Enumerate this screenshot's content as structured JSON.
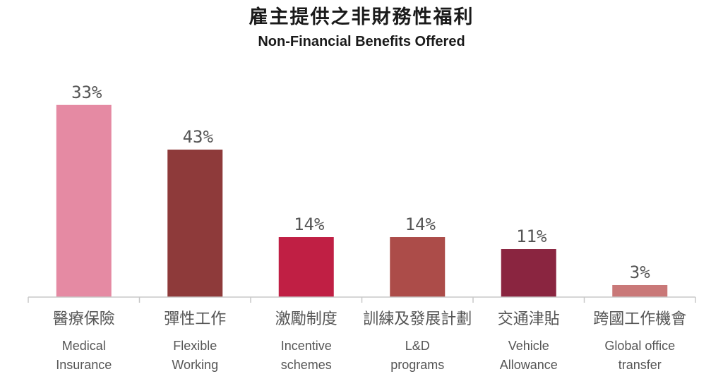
{
  "title": "雇主提供之非財務性福利",
  "subtitle": "Non-Financial Benefits Offered",
  "chart_data": {
    "type": "bar",
    "title": "雇主提供之非財務性福利",
    "subtitle": "Non-Financial Benefits Offered",
    "categories": [
      {
        "zh": "醫療保險",
        "en": [
          "Medical",
          "Insurance"
        ]
      },
      {
        "zh": "彈性工作",
        "en": [
          "Flexible",
          "Working"
        ]
      },
      {
        "zh": "激勵制度",
        "en": [
          "Incentive",
          "schemes"
        ]
      },
      {
        "zh": "訓練及發展計劃",
        "en": [
          "L&D",
          "programs"
        ]
      },
      {
        "zh": "交通津貼",
        "en": [
          "Vehicle",
          "Allowance"
        ]
      },
      {
        "zh": "跨國工作機會",
        "en": [
          "Global office",
          "transfer"
        ]
      }
    ],
    "values": [
      33,
      43,
      14,
      14,
      11,
      3
    ],
    "labels": [
      "33%",
      "43%",
      "14%",
      "14%",
      "11%",
      "3%"
    ],
    "colors": [
      "#e58aa3",
      "#8e3a3a",
      "#c01f44",
      "#ac4c49",
      "#8a2540",
      "#c97878"
    ],
    "xlabel": "",
    "ylabel": "",
    "grid": false,
    "legend": "none"
  }
}
